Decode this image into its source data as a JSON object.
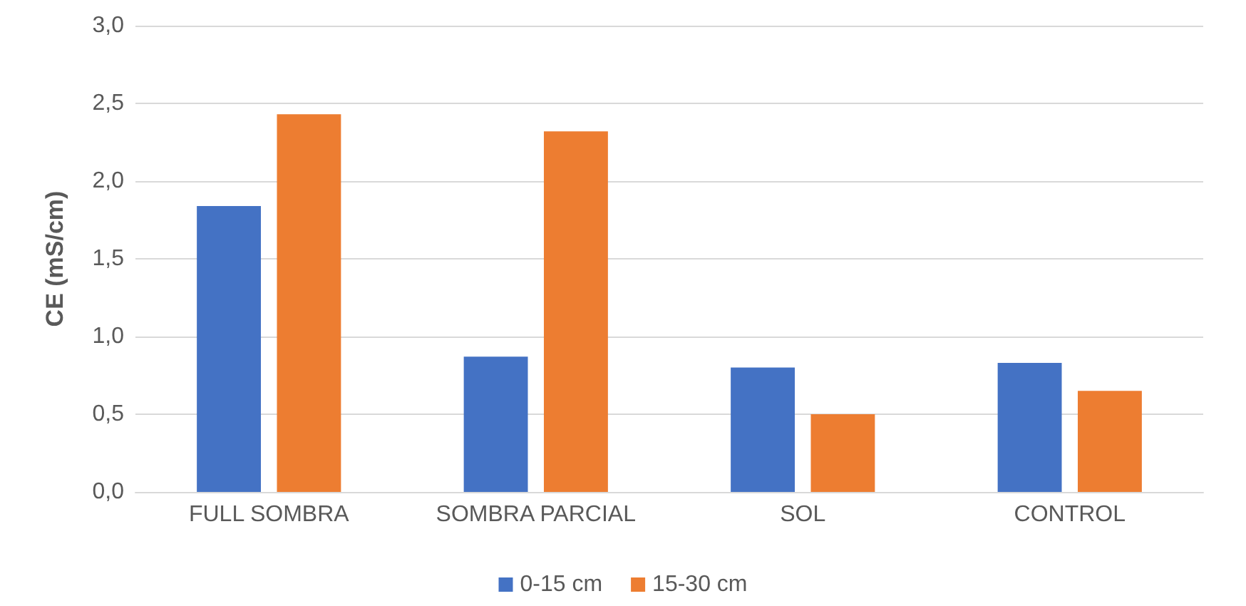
{
  "chart_data": {
    "type": "bar",
    "ylabel": "CE (mS/cm)",
    "categories": [
      "FULL SOMBRA",
      "SOMBRA PARCIAL",
      "SOL",
      "CONTROL"
    ],
    "series": [
      {
        "name": "0-15 cm",
        "color": "#4472c4",
        "values": [
          1.84,
          0.87,
          0.8,
          0.83
        ]
      },
      {
        "name": "15-30 cm",
        "color": "#ed7d31",
        "values": [
          2.43,
          2.32,
          0.5,
          0.65
        ]
      }
    ],
    "ylim": [
      0,
      3
    ],
    "yticks": [
      {
        "value": 0,
        "label": "0,0"
      },
      {
        "value": 0.5,
        "label": "0,5"
      },
      {
        "value": 1,
        "label": "1,0"
      },
      {
        "value": 1.5,
        "label": "1,5"
      },
      {
        "value": 2,
        "label": "2,0"
      },
      {
        "value": 2.5,
        "label": "2,5"
      },
      {
        "value": 3,
        "label": "3,0"
      }
    ],
    "grid": "y",
    "legend": "bottom"
  }
}
